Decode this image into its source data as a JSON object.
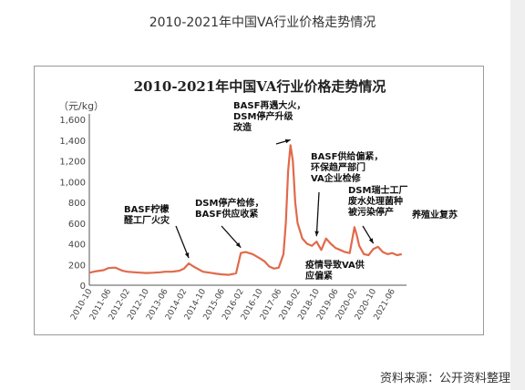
{
  "page": {
    "title": "2010-2021年中国VA行业价格走势情况",
    "source": "资料来源：公开资料整理"
  },
  "chart_data": {
    "type": "line",
    "title": "2010-2021年中国VA行业价格走势情况",
    "ylabel": "（元/kg）",
    "xlabel": "",
    "ylim": [
      0,
      1600
    ],
    "yticks": [
      "0",
      "200",
      "400",
      "600",
      "800",
      "1,000",
      "1,200",
      "1,400",
      "1,600"
    ],
    "xticks": [
      "2010-10",
      "2011-06",
      "2012-02",
      "2012-10",
      "2013-06",
      "2014-02",
      "2014-10",
      "2015-06",
      "2016-02",
      "2016-10",
      "2017-06",
      "2018-02",
      "2018-10",
      "2019-06",
      "2020-02",
      "2020-10",
      "2021-06"
    ],
    "grid": false,
    "line_color": "#e06a4a",
    "series": [
      {
        "x": [
          "2010-10",
          "2011-01",
          "2011-04",
          "2011-06",
          "2011-09",
          "2011-12",
          "2012-02",
          "2012-05",
          "2012-08",
          "2012-10",
          "2013-01",
          "2013-04",
          "2013-06",
          "2013-09",
          "2013-12",
          "2014-02",
          "2014-04",
          "2014-06",
          "2014-10",
          "2015-01",
          "2015-04",
          "2015-06",
          "2015-09",
          "2015-12",
          "2016-02",
          "2016-04",
          "2016-07",
          "2016-10",
          "2016-12",
          "2017-02",
          "2017-04",
          "2017-06",
          "2017-08",
          "2017-09",
          "2017-10",
          "2017-11",
          "2017-12",
          "2018-01",
          "2018-02",
          "2018-04",
          "2018-06",
          "2018-08",
          "2018-10",
          "2018-12",
          "2019-02",
          "2019-04",
          "2019-06",
          "2019-08",
          "2019-10",
          "2019-12",
          "2020-02",
          "2020-03",
          "2020-04",
          "2020-06",
          "2020-08",
          "2020-10",
          "2020-12",
          "2021-02",
          "2021-04",
          "2021-06",
          "2021-08",
          "2021-10"
        ],
        "values": [
          120,
          135,
          145,
          165,
          170,
          140,
          130,
          125,
          120,
          118,
          120,
          125,
          130,
          130,
          140,
          160,
          210,
          180,
          130,
          120,
          110,
          105,
          100,
          115,
          310,
          320,
          300,
          260,
          230,
          180,
          160,
          170,
          300,
          600,
          1100,
          1350,
          1200,
          800,
          600,
          450,
          400,
          380,
          420,
          340,
          450,
          400,
          360,
          340,
          320,
          310,
          560,
          480,
          380,
          300,
          290,
          350,
          370,
          320,
          300,
          310,
          290,
          300
        ]
      }
    ],
    "annotations": [
      {
        "lines": [
          "BASF柠檬",
          "醛工厂火灾"
        ],
        "x": "2014-04",
        "y": 210
      },
      {
        "lines": [
          "DSM停产检修，",
          "BASF供应收紧"
        ],
        "x": "2016-02",
        "y": 310
      },
      {
        "lines": [
          "BASF再遇大火，",
          "DSM停产升级",
          "改造"
        ],
        "x": "2017-11",
        "y": 1350
      },
      {
        "lines": [
          "BASF供给偏紧，",
          "环保趋严部门",
          "VA企业检修"
        ],
        "x": "2018-10",
        "y": 420
      },
      {
        "lines": [
          "疫情导致VA供",
          "应偏紧"
        ],
        "x": "2020-02",
        "y": 560
      },
      {
        "lines": [
          "DSM瑞士工厂",
          "废水处理菌种",
          "被污染停产"
        ],
        "x": "2020-10",
        "y": 350
      },
      {
        "lines": [
          "养殖业复苏"
        ],
        "x": "2021-06",
        "y": 310
      }
    ]
  }
}
